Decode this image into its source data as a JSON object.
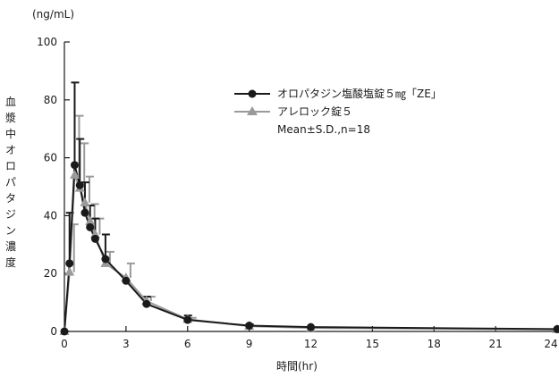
{
  "chart_data": {
    "type": "line",
    "unit_label": "(ng/mL)",
    "ylabel": "血漿中オロパタジン濃度",
    "xlabel": "時間(hr)",
    "xlim": [
      0,
      24
    ],
    "ylim": [
      0,
      100
    ],
    "xticks": [
      0,
      3,
      6,
      9,
      12,
      15,
      18,
      21,
      24
    ],
    "xtick_labels": [
      "0",
      "3",
      "6",
      "9",
      "12",
      "15",
      "18",
      "21",
      "24"
    ],
    "yticks": [
      0,
      20,
      40,
      60,
      80,
      100
    ],
    "ytick_labels": [
      "0",
      "20",
      "40",
      "60",
      "80",
      "100"
    ],
    "legend_position": "upper-right",
    "stat_note": "Mean±S.D.,n=18",
    "series": [
      {
        "name": "オロパタジン塩酸塩錠５㎎「ZE」",
        "marker": "circle",
        "color": "#1a1a1a",
        "x": [
          0,
          0.25,
          0.5,
          0.75,
          1,
          1.25,
          1.5,
          2,
          3,
          4,
          6,
          9,
          12,
          24
        ],
        "y": [
          0,
          23.5,
          57.5,
          50.5,
          41,
          36,
          32,
          25,
          17.5,
          9.5,
          4,
          2,
          1.5,
          0.8
        ],
        "sd": [
          0,
          17.5,
          28.5,
          16,
          10.5,
          7.5,
          7,
          8.5,
          0,
          2.5,
          1.5,
          0.5,
          0,
          0
        ]
      },
      {
        "name": "アレロック錠５",
        "marker": "triangle",
        "color": "#9a9a9a",
        "x": [
          0,
          0.25,
          0.5,
          0.75,
          1,
          1.25,
          1.5,
          2,
          3,
          4,
          6,
          9,
          12,
          24
        ],
        "y": [
          0,
          20.5,
          54,
          49.5,
          44.5,
          38,
          33.5,
          23.5,
          18.5,
          10.5,
          4.2,
          1.8,
          1.2,
          0.7
        ],
        "sd": [
          0,
          16.5,
          20.5,
          15.5,
          9,
          6,
          5.5,
          4,
          5,
          1.5,
          0.5,
          0,
          0,
          0
        ]
      }
    ]
  }
}
